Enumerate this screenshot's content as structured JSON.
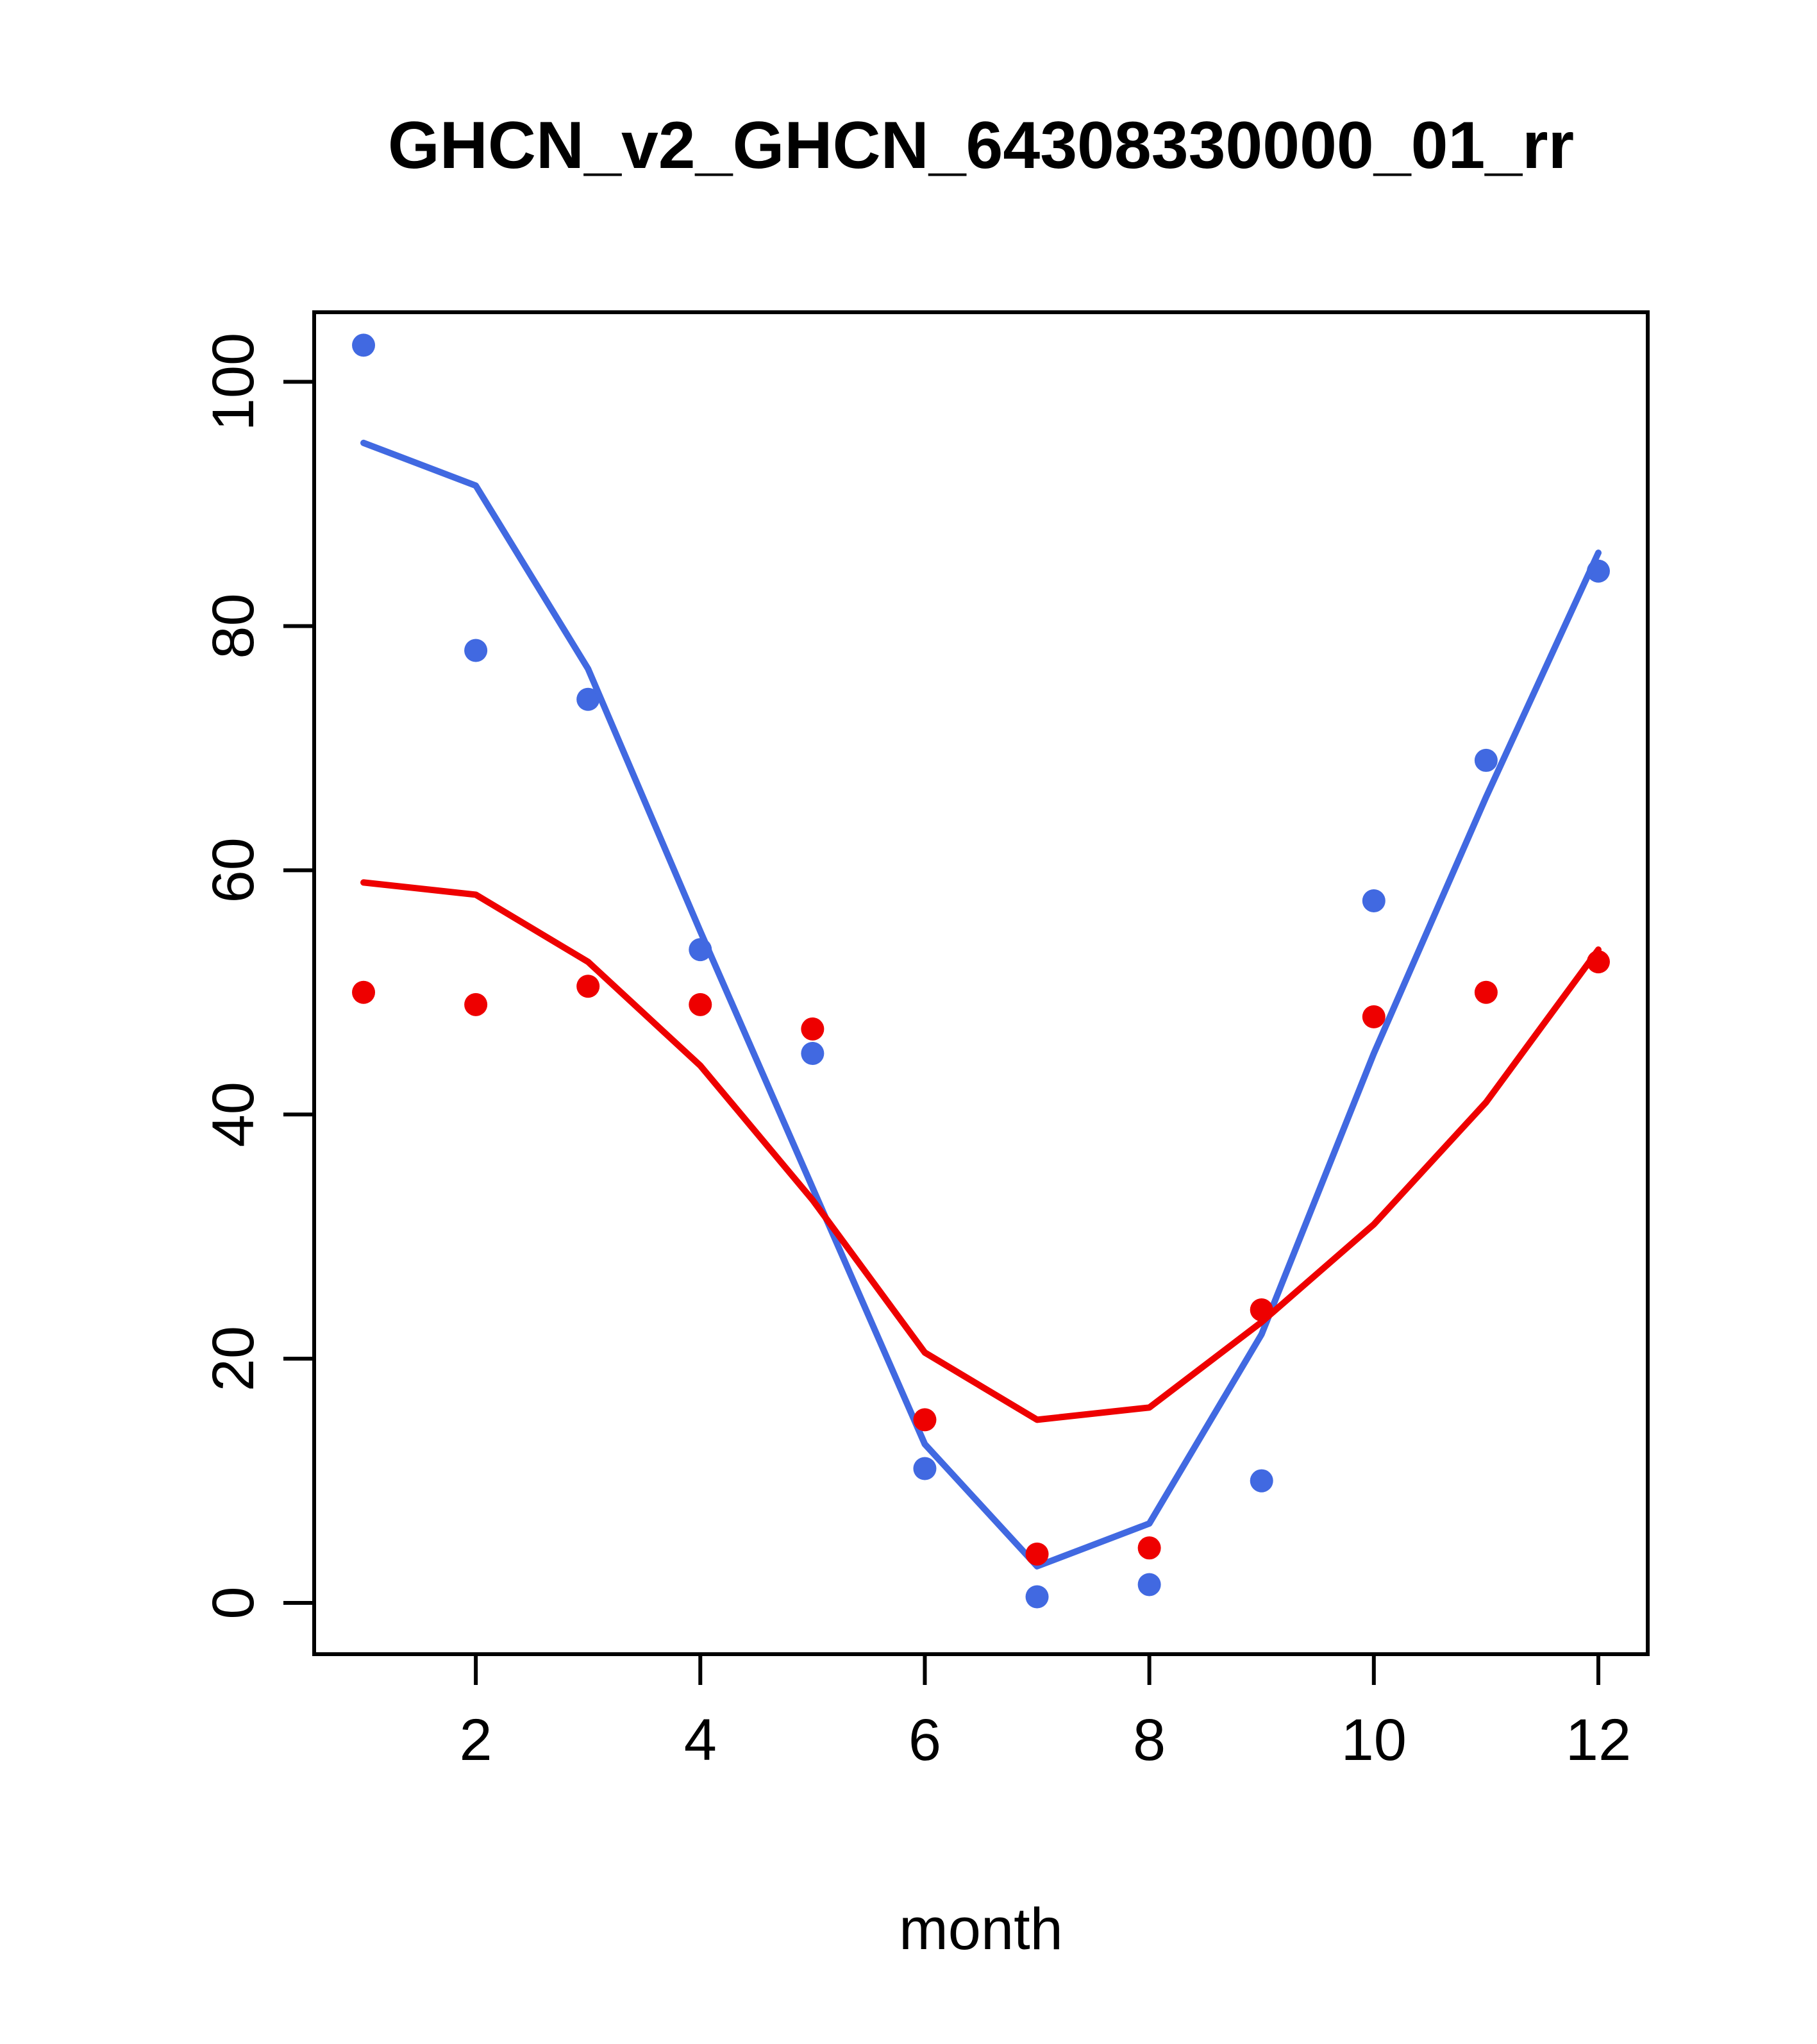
{
  "chart_data": {
    "type": "scatter",
    "title": "GHCN_v2_GHCN_64308330000_01_rr",
    "xlabel": "month",
    "ylabel": "",
    "x": [
      1,
      2,
      3,
      4,
      5,
      6,
      7,
      8,
      9,
      10,
      11,
      12
    ],
    "xticks": [
      2,
      4,
      6,
      8,
      10,
      12
    ],
    "yticks": [
      0,
      20,
      40,
      60,
      80,
      100
    ],
    "xlim": [
      0.56,
      12.44
    ],
    "ylim": [
      -4.2,
      105.7
    ],
    "grid": false,
    "legend": "none",
    "colors": {
      "blue": "#4169E1",
      "red": "#EE0000",
      "axis": "#000000",
      "background": "#FFFFFF"
    },
    "series": [
      {
        "name": "blue-points",
        "kind": "points",
        "color_key": "blue",
        "values": [
          103,
          78,
          74,
          53.5,
          45,
          11,
          0.5,
          1.5,
          10,
          57.5,
          69,
          84.5
        ]
      },
      {
        "name": "blue-smooth-line",
        "kind": "line",
        "color_key": "blue",
        "values": [
          95,
          91.5,
          76.5,
          55,
          34,
          13,
          3,
          6.5,
          22,
          45,
          66,
          86
        ]
      },
      {
        "name": "red-points",
        "kind": "points",
        "color_key": "red",
        "values": [
          50,
          49,
          50.5,
          49,
          47,
          15,
          4,
          4.5,
          24,
          48,
          50,
          52.5
        ]
      },
      {
        "name": "red-smooth-line",
        "kind": "line",
        "color_key": "red",
        "values": [
          59,
          58,
          52.5,
          44,
          33,
          20.5,
          15,
          16,
          23,
          31,
          41,
          53.5
        ]
      }
    ]
  }
}
